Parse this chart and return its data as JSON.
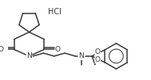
{
  "bg_color": "#ffffff",
  "line_color": "#3a3a3a",
  "line_width": 1.1,
  "font_size": 6.5,
  "fig_width": 1.89,
  "fig_height": 1.01,
  "dpi": 100,
  "xlim": [
    0,
    189
  ],
  "ylim": [
    0,
    101
  ]
}
